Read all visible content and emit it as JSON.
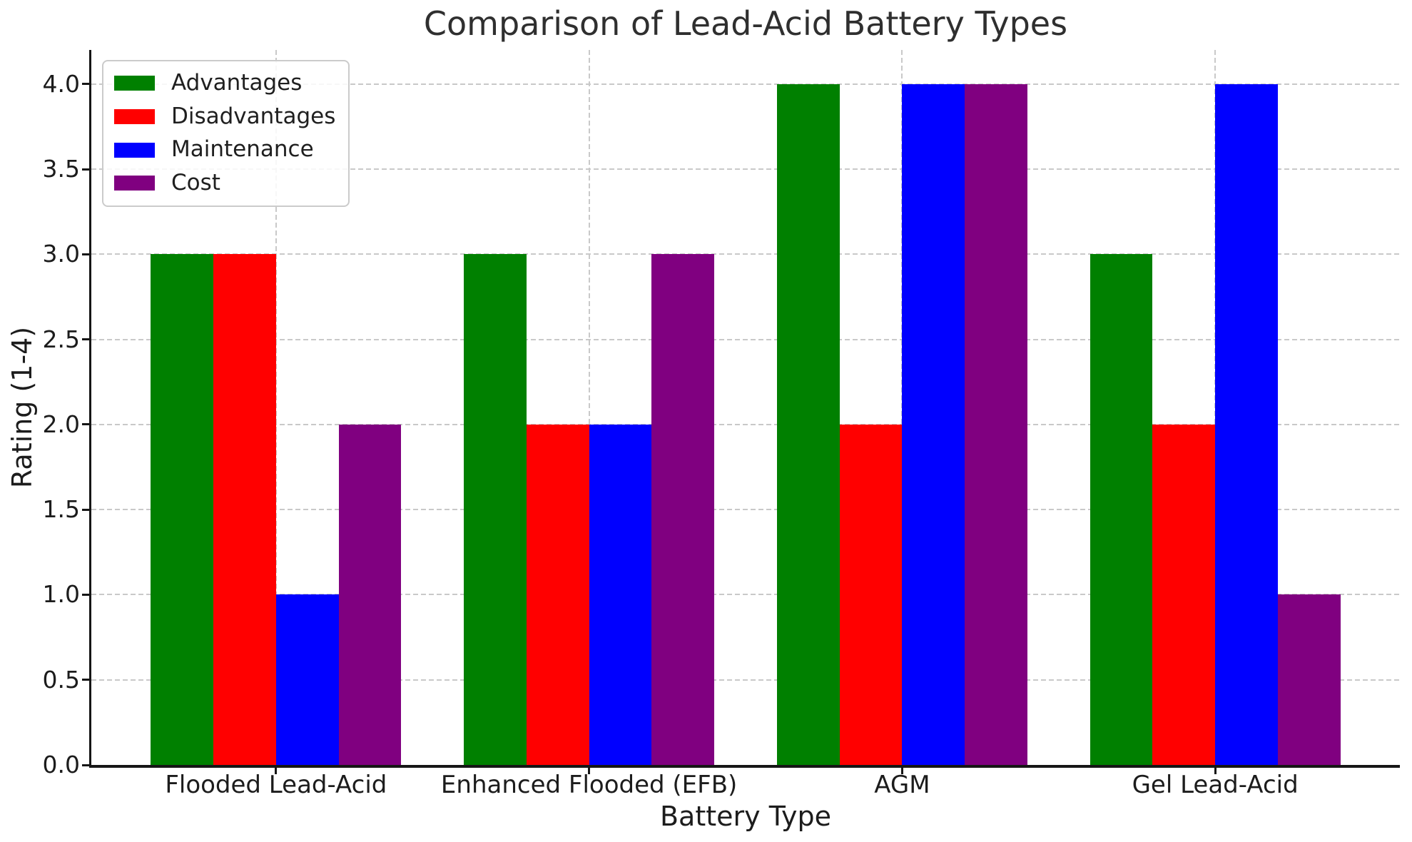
{
  "chart_data": {
    "type": "bar",
    "title": "Comparison of Lead-Acid Battery Types",
    "xlabel": "Battery Type",
    "ylabel": "Rating (1-4)",
    "categories": [
      "Flooded Lead-Acid",
      "Enhanced Flooded (EFB)",
      "AGM",
      "Gel Lead-Acid"
    ],
    "series": [
      {
        "name": "Advantages",
        "color": "#008000",
        "values": [
          3,
          3,
          4,
          3
        ]
      },
      {
        "name": "Disadvantages",
        "color": "#ff0000",
        "values": [
          3,
          2,
          2,
          2
        ]
      },
      {
        "name": "Maintenance",
        "color": "#0000ff",
        "values": [
          1,
          2,
          4,
          4
        ]
      },
      {
        "name": "Cost",
        "color": "#800080",
        "values": [
          2,
          3,
          4,
          1
        ]
      }
    ],
    "ylim": [
      0,
      4.2
    ],
    "yticks": [
      0,
      0.5,
      1,
      1.5,
      2,
      2.5,
      3,
      3.5,
      4
    ],
    "ytick_labels": [
      "0.0",
      "0.5",
      "1.0",
      "1.5",
      "2.0",
      "2.5",
      "3.0",
      "3.5",
      "4.0"
    ],
    "bar_width": 0.2,
    "grid": true,
    "legend_position": "upper left"
  }
}
